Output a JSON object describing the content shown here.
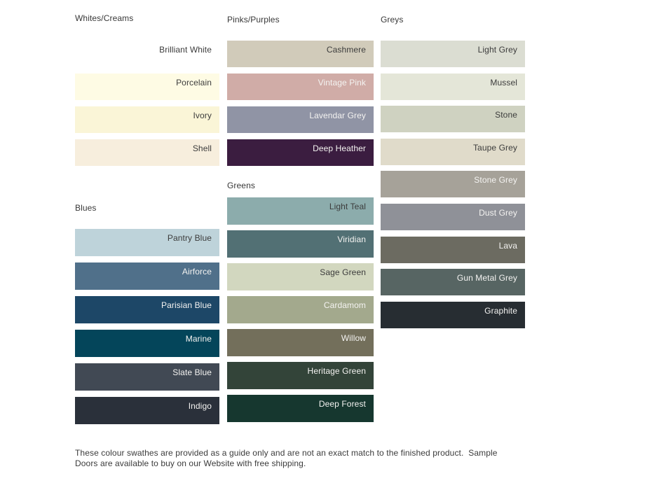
{
  "page": {
    "background": "#ffffff"
  },
  "label_colors": {
    "dark": "#3c3c3c",
    "light": "#f4f3f1"
  },
  "columns": [
    {
      "name": "column-whites-blues",
      "sections": [
        {
          "header": "Whites/Creams",
          "swatches": [
            {
              "label": "Brilliant White",
              "color": "#ffffff",
              "tone": "dark"
            },
            {
              "label": "Porcelain",
              "color": "#fefbe4",
              "tone": "dark"
            },
            {
              "label": "Ivory",
              "color": "#faf5d7",
              "tone": "dark"
            },
            {
              "label": "Shell",
              "color": "#f7eedd",
              "tone": "dark"
            }
          ]
        },
        {
          "header": "Blues",
          "swatches": [
            {
              "label": "Pantry Blue",
              "color": "#bed3da",
              "tone": "dark"
            },
            {
              "label": "Airforce",
              "color": "#50708a",
              "tone": "light"
            },
            {
              "label": "Parisian Blue",
              "color": "#1d4767",
              "tone": "light"
            },
            {
              "label": "Marine",
              "color": "#04455a",
              "tone": "light"
            },
            {
              "label": "Slate Blue",
              "color": "#414954",
              "tone": "light"
            },
            {
              "label": "Indigo",
              "color": "#2a303a",
              "tone": "light"
            }
          ]
        }
      ]
    },
    {
      "name": "column-pinks-greens",
      "sections": [
        {
          "header": "Pinks/Purples",
          "swatches": [
            {
              "label": "Cashmere",
              "color": "#d1cbba",
              "tone": "dark"
            },
            {
              "label": "Vintage Pink",
              "color": "#d0aca7",
              "tone": "light"
            },
            {
              "label": "Lavendar Grey",
              "color": "#9094a5",
              "tone": "light"
            },
            {
              "label": "Deep Heather",
              "color": "#3b1d40",
              "tone": "light"
            }
          ]
        },
        {
          "header": "Greens",
          "swatches": [
            {
              "label": "Light Teal",
              "color": "#8cacac",
              "tone": "dark"
            },
            {
              "label": "Viridian",
              "color": "#527074",
              "tone": "light"
            },
            {
              "label": "Sage Green",
              "color": "#d2d7bf",
              "tone": "dark"
            },
            {
              "label": "Cardamom",
              "color": "#a3a98d",
              "tone": "light"
            },
            {
              "label": "Willow",
              "color": "#736f5b",
              "tone": "light"
            },
            {
              "label": "Heritage Green",
              "color": "#334439",
              "tone": "light"
            },
            {
              "label": "Deep Forest",
              "color": "#16372f",
              "tone": "light"
            }
          ]
        }
      ]
    },
    {
      "name": "column-greys",
      "sections": [
        {
          "header": "Greys",
          "swatches": [
            {
              "label": "Light Grey",
              "color": "#dbddd2",
              "tone": "dark"
            },
            {
              "label": "Mussel",
              "color": "#e4e6d8",
              "tone": "dark"
            },
            {
              "label": "Stone",
              "color": "#cfd2c1",
              "tone": "dark"
            },
            {
              "label": "Taupe Grey",
              "color": "#e0dbca",
              "tone": "dark"
            },
            {
              "label": "Stone Grey",
              "color": "#a6a299",
              "tone": "light"
            },
            {
              "label": "Dust Grey",
              "color": "#8f9198",
              "tone": "light"
            },
            {
              "label": "Lava",
              "color": "#6c6b61",
              "tone": "light"
            },
            {
              "label": "Gun Metal Grey",
              "color": "#576563",
              "tone": "light"
            },
            {
              "label": "Graphite",
              "color": "#272d32",
              "tone": "light"
            }
          ]
        }
      ]
    }
  ],
  "note": {
    "lines": [
      "These colour swathes are provided as a guide only and are not an exact match to the finished product.  Sample",
      "Doors are available to buy on our Website with free shipping."
    ]
  }
}
